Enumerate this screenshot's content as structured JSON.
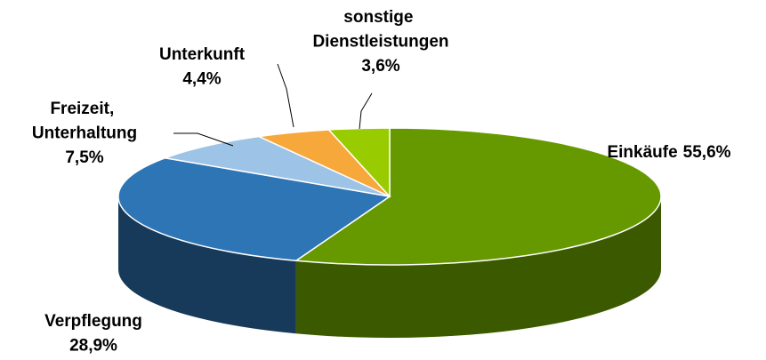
{
  "chart_data": {
    "type": "pie3d",
    "categories": [
      "Einkäufe",
      "Verpflegung",
      "Freizeit, Unterhaltung",
      "Unterkunft",
      "sonstige Dienstleistungen"
    ],
    "values": [
      55.6,
      28.9,
      7.5,
      4.4,
      3.6
    ],
    "value_labels": [
      "55,6%",
      "28,9%",
      "7,5%",
      "4,4%",
      "3,6%"
    ],
    "colors": [
      "#669900",
      "#2e75b6",
      "#9dc3e6",
      "#f7a83a",
      "#99cc00"
    ],
    "side_colors": [
      "#3b5a00",
      "#173a5a",
      "#5b7f9f",
      "#a5671c",
      "#5f8000"
    ]
  }
}
